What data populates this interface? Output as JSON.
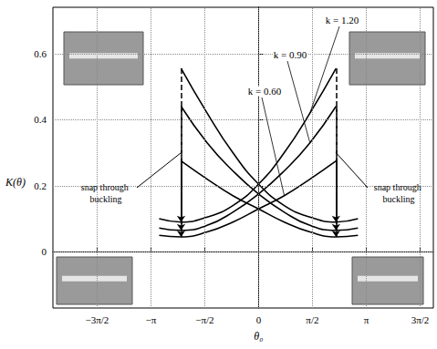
{
  "chart_data": {
    "type": "line",
    "x_label": "θ₀",
    "y_label": "K(θ)",
    "xlim": [
      -6.0,
      5.1
    ],
    "ylim": [
      -0.17,
      0.74
    ],
    "xticks": [
      {
        "value": -4.712389,
        "label": "−3π/2"
      },
      {
        "value": -3.141593,
        "label": "−π"
      },
      {
        "value": -1.570796,
        "label": "−π/2"
      },
      0,
      {
        "value": 1.570796,
        "label": "π/2"
      },
      {
        "value": 3.141593,
        "label": "π"
      },
      {
        "value": 4.712389,
        "label": "3π/2"
      }
    ],
    "yticks": [
      0,
      0.2,
      0.4,
      0.6
    ],
    "grid": true,
    "marker": "none",
    "line_style": "solid",
    "series": [
      {
        "name": "k = 1.20",
        "color": "#000000",
        "branches": [
          {
            "x": [
              -2.26,
              -1.5,
              -0.75,
              0,
              0.75,
              1.5,
              2.26,
              2.9
            ],
            "values": [
              0.555,
              0.42,
              0.3,
              0.205,
              0.14,
              0.105,
              0.09,
              0.1
            ]
          },
          {
            "x": [
              -2.9,
              -2.26,
              -1.5,
              -0.75,
              0,
              0.75,
              1.5,
              2.26
            ],
            "values": [
              0.1,
              0.09,
              0.105,
              0.14,
              0.205,
              0.3,
              0.42,
              0.555
            ]
          }
        ]
      },
      {
        "name": "k = 0.90",
        "color": "#000000",
        "branches": [
          {
            "x": [
              -2.26,
              -1.5,
              -0.75,
              0,
              0.75,
              1.5,
              2.26,
              2.9
            ],
            "values": [
              0.44,
              0.33,
              0.245,
              0.175,
              0.12,
              0.08,
              0.065,
              0.072
            ]
          },
          {
            "x": [
              -2.9,
              -2.26,
              -1.5,
              -0.75,
              0,
              0.75,
              1.5,
              2.26
            ],
            "values": [
              0.072,
              0.065,
              0.08,
              0.12,
              0.175,
              0.245,
              0.33,
              0.44
            ]
          }
        ]
      },
      {
        "name": "k = 0.60",
        "color": "#000000",
        "branches": [
          {
            "x": [
              -2.26,
              -1.5,
              -0.75,
              0,
              0.75,
              1.5,
              2.26,
              2.9
            ],
            "values": [
              0.275,
              0.22,
              0.17,
              0.13,
              0.09,
              0.06,
              0.045,
              0.05
            ]
          },
          {
            "x": [
              -2.9,
              -2.26,
              -1.5,
              -0.75,
              0,
              0.75,
              1.5,
              2.26
            ],
            "values": [
              0.05,
              0.045,
              0.06,
              0.09,
              0.13,
              0.17,
              0.22,
              0.275
            ]
          }
        ]
      }
    ],
    "annotations": [
      "snap through buckling",
      "snap through buckling"
    ]
  }
}
